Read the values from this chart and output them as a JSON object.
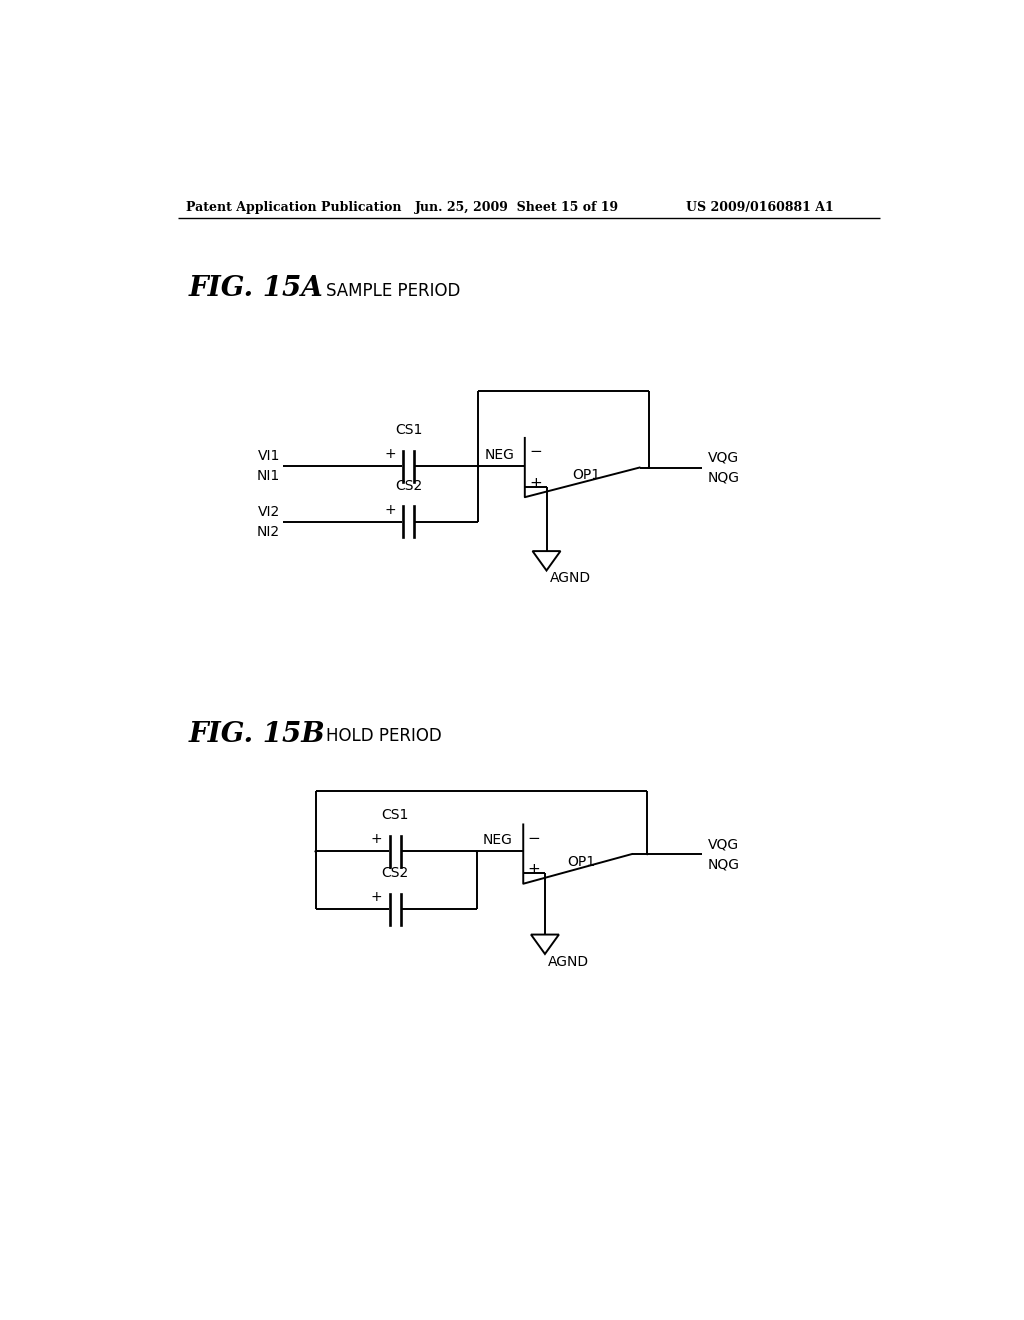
{
  "bg_color": "#ffffff",
  "header_left": "Patent Application Publication",
  "header_mid": "Jun. 25, 2009  Sheet 15 of 19",
  "header_right": "US 2009/0160881 A1",
  "fig15a_bold": "FIG. 15A",
  "fig15a_sub": "SAMPLE PERIOD",
  "fig15b_bold": "FIG. 15B",
  "fig15b_sub": "HOLD PERIOD",
  "lw": 1.4,
  "dot_r": 0.05
}
